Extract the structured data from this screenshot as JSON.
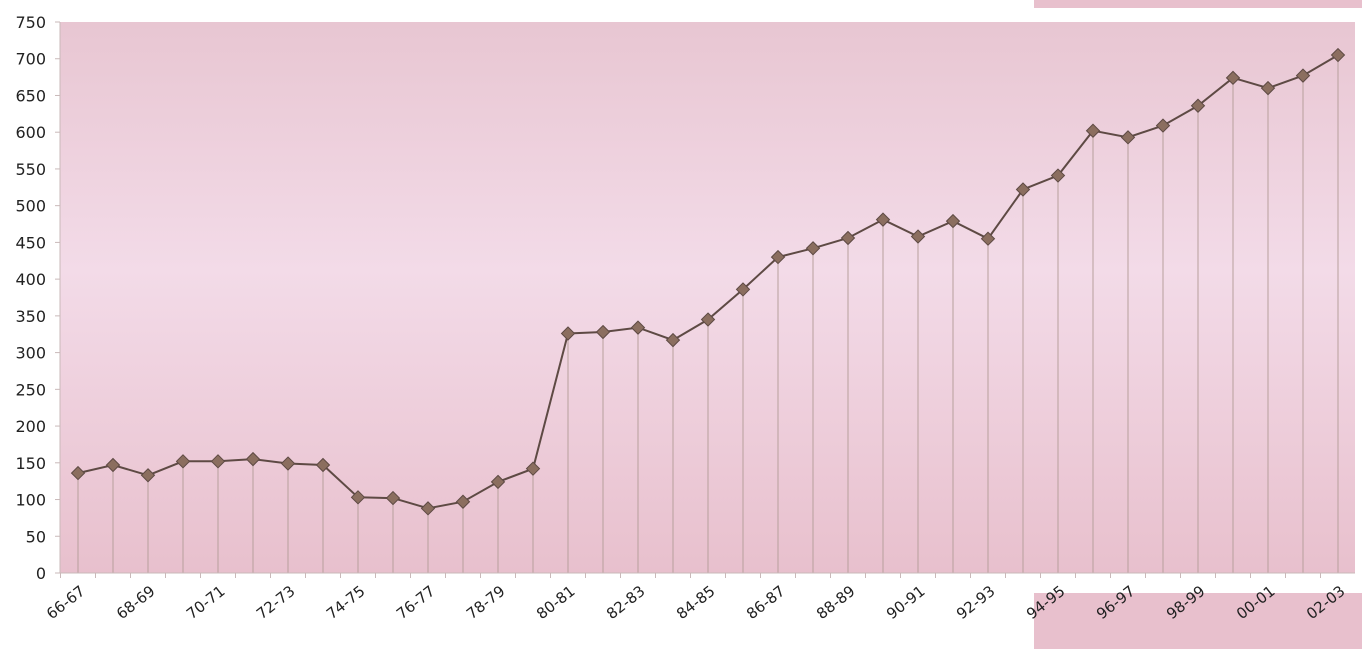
{
  "chart_data": {
    "type": "line",
    "title": "",
    "xlabel": "",
    "ylabel": "",
    "ylim": [
      0,
      750
    ],
    "yticks": [
      0,
      50,
      100,
      150,
      200,
      250,
      300,
      350,
      400,
      450,
      500,
      550,
      600,
      650,
      700,
      750
    ],
    "grid": "vertical drop lines at each point",
    "legend": "none",
    "x_tick_labels": [
      "66-67",
      "68-69",
      "70-71",
      "72-73",
      "74-75",
      "76-77",
      "78-79",
      "80-81",
      "82-83",
      "84-85",
      "86-87",
      "88-89",
      "90-91",
      "92-93",
      "94-95",
      "96-97",
      "98-99",
      "00-01",
      "02-03"
    ],
    "series": [
      {
        "values": [
          136,
          147,
          133,
          152,
          152,
          155,
          149,
          147,
          103,
          102,
          88,
          97,
          124,
          142,
          326,
          328,
          334,
          317,
          345,
          386,
          430,
          442,
          456,
          481,
          458,
          479,
          455,
          522,
          541,
          602,
          593,
          609,
          636,
          674,
          660,
          677,
          705
        ]
      }
    ],
    "colors": {
      "plot_bg_top": "#e8c6d2",
      "plot_bg_mid": "#f3dbe8",
      "plot_bg_bottom": "#e8c0cd",
      "line": "#5e4a44",
      "marker": "#8b6e5f",
      "drop_line": "#b7a09c"
    }
  }
}
